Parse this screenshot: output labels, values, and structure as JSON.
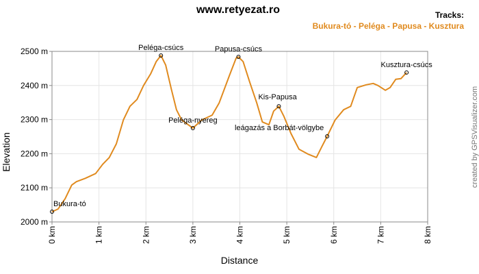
{
  "chart_data": {
    "type": "line",
    "title": "www.retyezat.ro",
    "legend_title": "Tracks:",
    "series": [
      {
        "name": "Bukura-tó - Peléga - Papusa - Kusztura",
        "color": "#e08a1e",
        "x": [
          0,
          0.13,
          0.28,
          0.42,
          0.52,
          0.71,
          0.93,
          1.08,
          1.22,
          1.37,
          1.52,
          1.66,
          1.81,
          1.95,
          2.1,
          2.22,
          2.32,
          2.42,
          2.54,
          2.65,
          2.76,
          2.9,
          3.0,
          3.19,
          3.41,
          3.56,
          3.78,
          3.92,
          3.97,
          4.07,
          4.21,
          4.36,
          4.48,
          4.62,
          4.72,
          4.83,
          4.94,
          5.09,
          5.26,
          5.45,
          5.63,
          5.74,
          5.86,
          6.03,
          6.21,
          6.36,
          6.5,
          6.69,
          6.84,
          6.94,
          7.1,
          7.2,
          7.32,
          7.43,
          7.55
        ],
        "values": [
          2030,
          2038,
          2068,
          2108,
          2118,
          2128,
          2142,
          2169,
          2189,
          2229,
          2299,
          2339,
          2359,
          2400,
          2434,
          2470,
          2488,
          2460,
          2390,
          2329,
          2299,
          2285,
          2275,
          2299,
          2313,
          2349,
          2430,
          2480,
          2484,
          2470,
          2410,
          2349,
          2293,
          2285,
          2325,
          2339,
          2309,
          2259,
          2213,
          2199,
          2189,
          2219,
          2251,
          2299,
          2329,
          2339,
          2394,
          2402,
          2406,
          2400,
          2386,
          2394,
          2418,
          2420,
          2438
        ]
      }
    ],
    "waypoints": [
      {
        "label": "Bukura-tó",
        "x": 0,
        "y": 2030
      },
      {
        "label": "Peléga-csúcs",
        "x": 2.32,
        "y": 2488
      },
      {
        "label": "Peléga-nyereg",
        "x": 3.0,
        "y": 2275
      },
      {
        "label": "Papusa-csúcs",
        "x": 3.97,
        "y": 2484
      },
      {
        "label": "Kis-Papusa",
        "x": 4.83,
        "y": 2339
      },
      {
        "label": "leágazás a Borbát-völgybe",
        "x": 5.86,
        "y": 2251
      },
      {
        "label": "Kusztura-csúcs",
        "x": 7.55,
        "y": 2438
      }
    ],
    "xlabel": "Distance",
    "ylabel": "Elevation",
    "xlim": [
      0,
      8
    ],
    "ylim": [
      2000,
      2500
    ],
    "xticks": [
      {
        "value": 0,
        "label": "0 km"
      },
      {
        "value": 1,
        "label": "1 km"
      },
      {
        "value": 2,
        "label": "2 km"
      },
      {
        "value": 3,
        "label": "3 km"
      },
      {
        "value": 4,
        "label": "4 km"
      },
      {
        "value": 5,
        "label": "5 km"
      },
      {
        "value": 6,
        "label": "6 km"
      },
      {
        "value": 7,
        "label": "7 km"
      },
      {
        "value": 8,
        "label": "8 km"
      }
    ],
    "yticks": [
      {
        "value": 2000,
        "label": "2000 m"
      },
      {
        "value": 2100,
        "label": "2100 m"
      },
      {
        "value": 2200,
        "label": "2200 m"
      },
      {
        "value": 2300,
        "label": "2300 m"
      },
      {
        "value": 2400,
        "label": "2400 m"
      },
      {
        "value": 2500,
        "label": "2500 m"
      }
    ],
    "grid": true,
    "credit": "created by GPSVisualizer.com"
  }
}
